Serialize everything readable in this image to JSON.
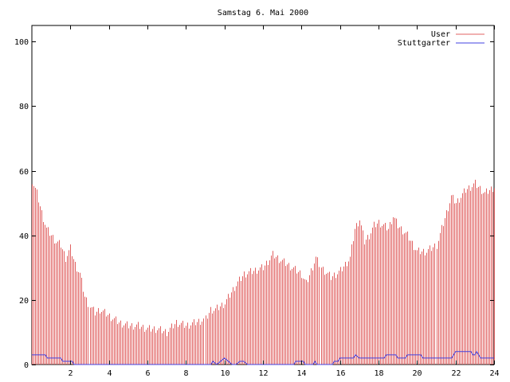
{
  "chart_data": {
    "type": "bar",
    "title": "Samstag 6. Mai 2000",
    "xlabel": "",
    "ylabel": "",
    "xlim": [
      0,
      24
    ],
    "ylim": [
      0,
      105
    ],
    "x_ticks": [
      2,
      4,
      6,
      8,
      10,
      12,
      14,
      16,
      18,
      20,
      22,
      24
    ],
    "y_ticks": [
      0,
      20,
      40,
      60,
      80,
      100
    ],
    "grid": false,
    "legend_position": "top-right",
    "series": [
      {
        "name": "User",
        "style": "impulses",
        "color": "#e06060",
        "keys": [
          0,
          0.25,
          0.5,
          0.75,
          1,
          1.25,
          1.5,
          1.75,
          2,
          2.25,
          2.5,
          2.75,
          3,
          3.25,
          3.5,
          3.75,
          4,
          4.5,
          5,
          5.5,
          6,
          6.5,
          7,
          7.5,
          8,
          8.5,
          9,
          9.25,
          9.5,
          9.75,
          10,
          10.5,
          11,
          11.5,
          12,
          12.5,
          12.75,
          13,
          13.5,
          14,
          14.25,
          14.5,
          14.75,
          15,
          15.5,
          16,
          16.5,
          16.75,
          17,
          17.25,
          17.5,
          17.75,
          18,
          18.5,
          18.75,
          19,
          19.5,
          20,
          20.5,
          21,
          21.25,
          21.5,
          21.75,
          22,
          22.5,
          23,
          23.5,
          24
        ],
        "values": [
          57,
          53,
          47,
          42,
          40,
          38,
          37,
          33,
          36,
          31,
          28,
          21,
          18,
          16,
          17,
          16,
          15,
          13,
          12,
          12,
          11,
          11,
          10,
          13,
          12,
          13,
          14,
          17,
          17,
          18,
          19,
          24,
          28,
          29,
          30,
          34,
          33,
          32,
          30,
          28,
          25,
          29,
          33,
          30,
          27,
          29,
          33,
          42,
          45,
          38,
          40,
          43,
          44,
          42,
          46,
          43,
          40,
          35,
          35,
          37,
          42,
          47,
          52,
          50,
          54,
          56,
          53,
          55
        ]
      },
      {
        "name": "Stuttgarter",
        "style": "line",
        "color": "#4040e0",
        "keys": [
          0,
          0.7,
          0.8,
          1.5,
          1.6,
          2.1,
          2.2,
          9.3,
          9.4,
          9.6,
          9.8,
          10,
          10.2,
          10.4,
          10.6,
          10.8,
          11,
          11.2,
          13.6,
          13.7,
          14.1,
          14.2,
          14.6,
          14.7,
          14.8,
          15.6,
          15.7,
          15.9,
          16,
          16.7,
          16.8,
          17,
          18.3,
          18.4,
          18.9,
          19,
          19.4,
          19.5,
          20.2,
          20.3,
          21.8,
          21.9,
          22,
          22.2,
          22.8,
          22.9,
          23,
          23.1,
          23.3,
          24
        ],
        "values": [
          3,
          3,
          2,
          2,
          1,
          1,
          0,
          0,
          1,
          0,
          1,
          2,
          1,
          0,
          0,
          1,
          1,
          0,
          0,
          1,
          1,
          0,
          0,
          1,
          0,
          0,
          1,
          1,
          2,
          2,
          3,
          2,
          2,
          3,
          3,
          2,
          2,
          3,
          3,
          2,
          2,
          3,
          4,
          4,
          4,
          3,
          3,
          4,
          2,
          2
        ]
      }
    ]
  }
}
